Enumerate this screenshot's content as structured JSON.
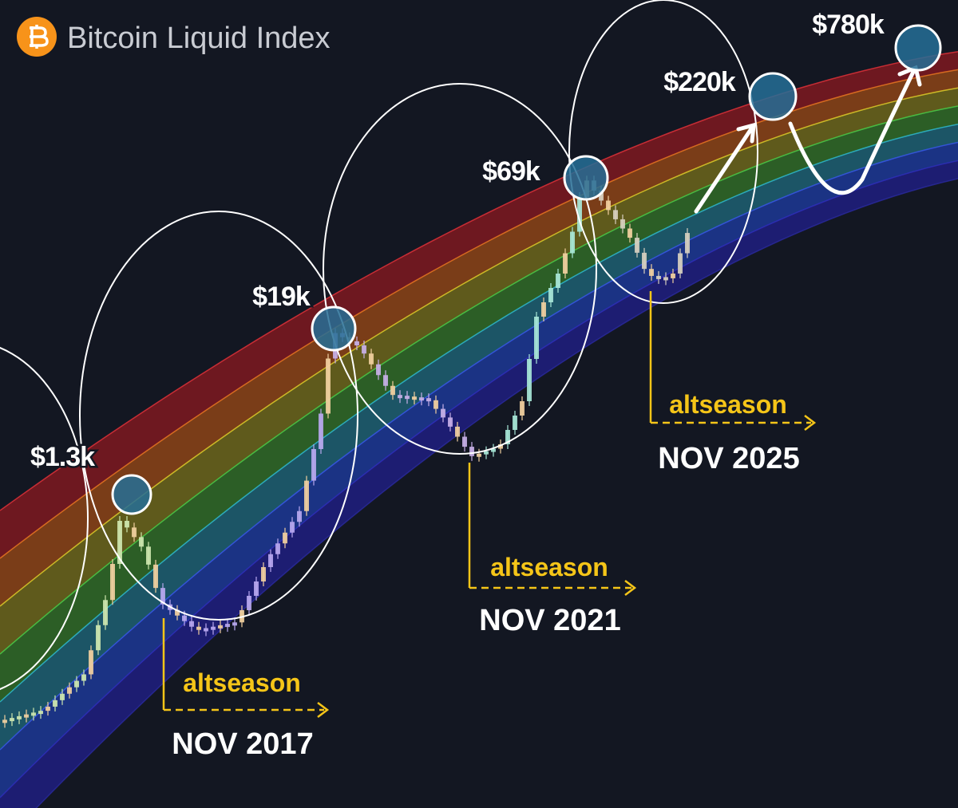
{
  "header": {
    "title": "Bitcoin Liquid Index"
  },
  "peaks": [
    {
      "label": "$1.3k"
    },
    {
      "label": "$19k"
    },
    {
      "label": "$69k"
    },
    {
      "label": "$220k"
    },
    {
      "label": "$780k"
    }
  ],
  "cycles": [
    {
      "note": "altseason",
      "date": "NOV 2017"
    },
    {
      "note": "altseason",
      "date": "NOV 2021"
    },
    {
      "note": "altseason",
      "date": "NOV 2025"
    }
  ]
}
